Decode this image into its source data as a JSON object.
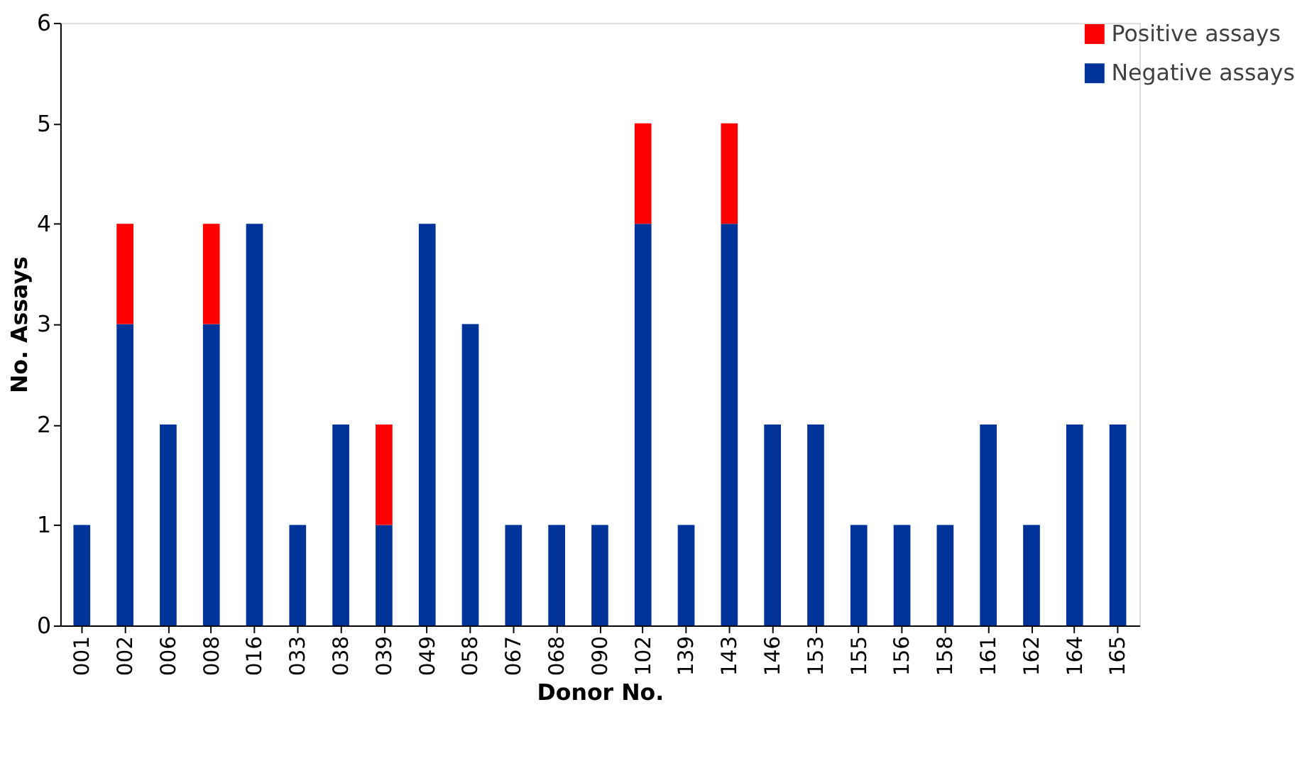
{
  "chart_data": {
    "type": "bar",
    "stacked": true,
    "xlabel": "Donor No.",
    "ylabel": "No. Assays",
    "categories": [
      "001",
      "002",
      "006",
      "008",
      "016",
      "033",
      "038",
      "039",
      "049",
      "058",
      "067",
      "068",
      "090",
      "102",
      "139",
      "143",
      "146",
      "153",
      "155",
      "156",
      "158",
      "161",
      "162",
      "164",
      "165"
    ],
    "series": [
      {
        "name": "Negative assays",
        "color": "#003399",
        "values": [
          1,
          3,
          2,
          3,
          4,
          1,
          2,
          1,
          4,
          3,
          1,
          1,
          1,
          4,
          1,
          4,
          2,
          2,
          1,
          1,
          1,
          2,
          1,
          2,
          2
        ]
      },
      {
        "name": "Positive assays",
        "color": "#ff0000",
        "values": [
          null,
          1,
          null,
          1,
          null,
          null,
          null,
          1,
          null,
          null,
          null,
          null,
          null,
          1,
          null,
          1,
          null,
          null,
          null,
          null,
          null,
          null,
          null,
          null,
          null
        ]
      }
    ],
    "ylim": [
      0,
      6
    ],
    "yticks": [
      0,
      1,
      2,
      3,
      4,
      5,
      6
    ],
    "grid": false,
    "legend": "right"
  }
}
